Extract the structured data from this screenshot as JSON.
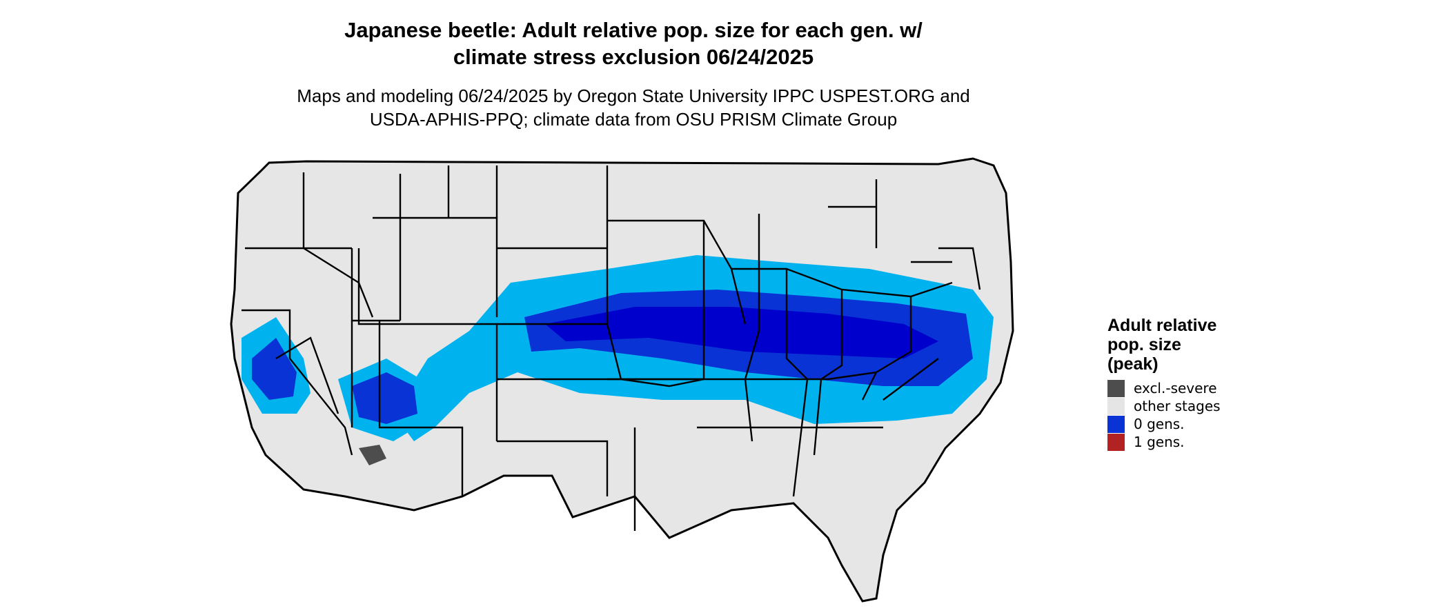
{
  "title": "Japanese beetle: Adult relative pop. size for each gen. w/\nclimate stress exclusion 06/24/2025",
  "subtitle": "Maps and modeling 06/24/2025 by Oregon State University IPPC USPEST.ORG and\nUSDA-APHIS-PPQ; climate data from OSU PRISM Climate Group",
  "legend": {
    "title": "Adult relative\npop. size\n(peak)",
    "items": [
      {
        "label": "excl.-severe",
        "color": "#4d4d4d"
      },
      {
        "label": "other stages",
        "color": "#e5e5e5"
      },
      {
        "label": "0 gens.",
        "color": "#0a33d6"
      },
      {
        "label": "1 gens.",
        "color": "#b22222"
      }
    ]
  },
  "map": {
    "region": "conterminous United States",
    "land_color": "#e6e6e6",
    "border_color": "#000000",
    "shading_colors": {
      "light": "#00b2ee",
      "medium": "#0a33d6",
      "dark": "#0000cc",
      "excluded": "#4d4d4d"
    }
  }
}
